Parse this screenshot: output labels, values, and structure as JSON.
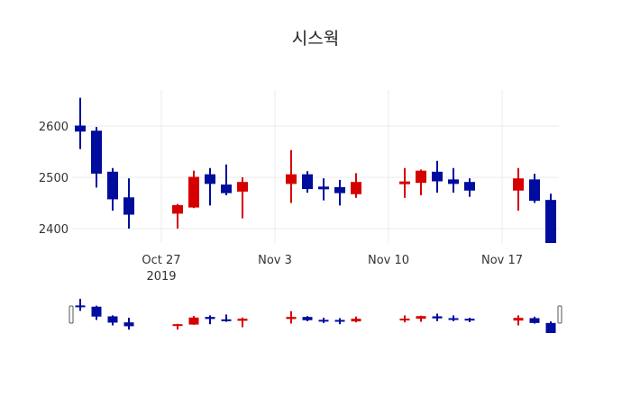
{
  "chart_data": {
    "type": "candlestick",
    "title": "시스웍",
    "xlabel": "",
    "ylabel": "",
    "y_ticks": [
      2400,
      2500,
      2600
    ],
    "x_ticks": [
      {
        "label": "Oct 27",
        "sub": "2019",
        "date": "2019-10-27"
      },
      {
        "label": "Nov 3",
        "sub": "",
        "date": "2019-11-03"
      },
      {
        "label": "Nov 10",
        "sub": "",
        "date": "2019-11-10"
      },
      {
        "label": "Nov 17",
        "sub": "",
        "date": "2019-11-17"
      }
    ],
    "ylim": [
      2372,
      2670
    ],
    "colors": {
      "increasing": "#d60000",
      "decreasing": "#000c9e"
    },
    "range_slider": true,
    "grid": true,
    "candles": [
      {
        "date": "2019-10-22",
        "open": 2600,
        "high": 2655,
        "low": 2555,
        "close": 2590
      },
      {
        "date": "2019-10-23",
        "open": 2590,
        "high": 2598,
        "low": 2480,
        "close": 2508
      },
      {
        "date": "2019-10-24",
        "open": 2510,
        "high": 2518,
        "low": 2435,
        "close": 2458
      },
      {
        "date": "2019-10-25",
        "open": 2460,
        "high": 2498,
        "low": 2400,
        "close": 2428
      },
      {
        "date": "2019-10-28",
        "open": 2430,
        "high": 2448,
        "low": 2400,
        "close": 2445
      },
      {
        "date": "2019-10-29",
        "open": 2442,
        "high": 2513,
        "low": 2440,
        "close": 2500
      },
      {
        "date": "2019-10-30",
        "open": 2505,
        "high": 2518,
        "low": 2445,
        "close": 2488
      },
      {
        "date": "2019-10-31",
        "open": 2485,
        "high": 2525,
        "low": 2465,
        "close": 2470
      },
      {
        "date": "2019-11-01",
        "open": 2473,
        "high": 2500,
        "low": 2420,
        "close": 2490
      },
      {
        "date": "2019-11-04",
        "open": 2488,
        "high": 2553,
        "low": 2450,
        "close": 2505
      },
      {
        "date": "2019-11-05",
        "open": 2505,
        "high": 2512,
        "low": 2470,
        "close": 2478
      },
      {
        "date": "2019-11-06",
        "open": 2481,
        "high": 2498,
        "low": 2455,
        "close": 2479
      },
      {
        "date": "2019-11-07",
        "open": 2480,
        "high": 2495,
        "low": 2445,
        "close": 2470
      },
      {
        "date": "2019-11-08",
        "open": 2468,
        "high": 2508,
        "low": 2460,
        "close": 2490
      },
      {
        "date": "2019-11-11",
        "open": 2488,
        "high": 2518,
        "low": 2460,
        "close": 2491
      },
      {
        "date": "2019-11-12",
        "open": 2490,
        "high": 2515,
        "low": 2465,
        "close": 2512
      },
      {
        "date": "2019-11-13",
        "open": 2510,
        "high": 2532,
        "low": 2470,
        "close": 2493
      },
      {
        "date": "2019-11-14",
        "open": 2495,
        "high": 2518,
        "low": 2470,
        "close": 2488
      },
      {
        "date": "2019-11-15",
        "open": 2490,
        "high": 2498,
        "low": 2462,
        "close": 2475
      },
      {
        "date": "2019-11-18",
        "open": 2475,
        "high": 2518,
        "low": 2435,
        "close": 2497
      },
      {
        "date": "2019-11-19",
        "open": 2495,
        "high": 2507,
        "low": 2450,
        "close": 2455
      },
      {
        "date": "2019-11-20",
        "open": 2455,
        "high": 2468,
        "low": 2372,
        "close": 2372
      }
    ]
  }
}
